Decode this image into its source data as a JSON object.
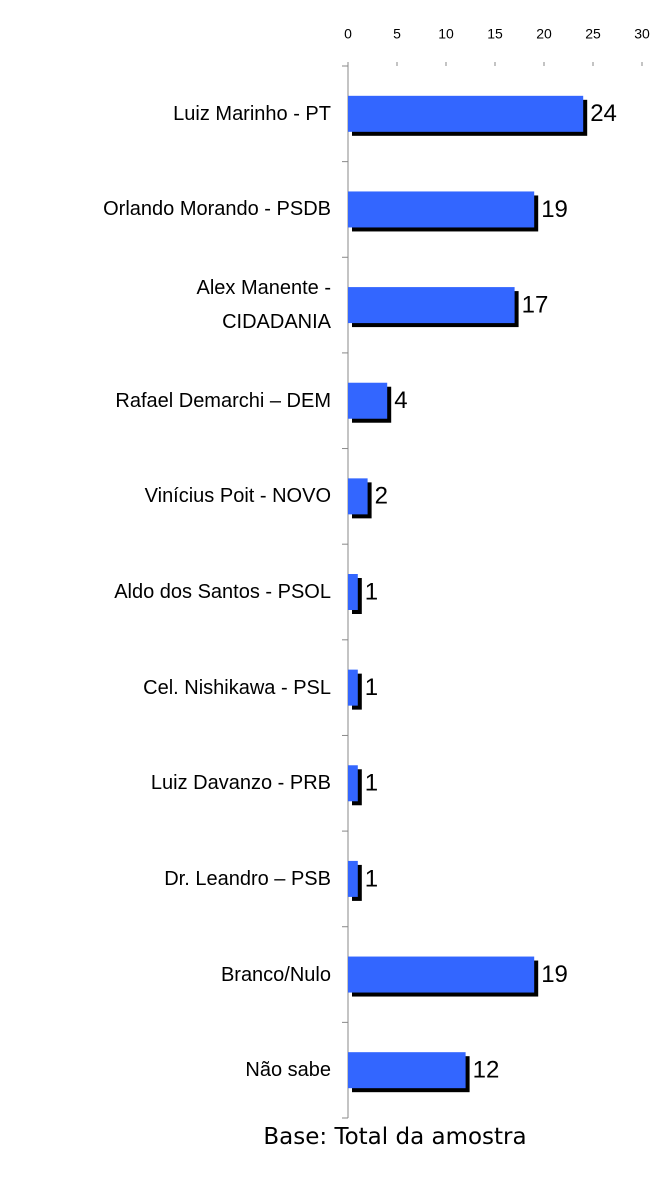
{
  "chart_data": {
    "type": "bar",
    "orientation": "horizontal",
    "categories": [
      "Luiz Marinho - PT",
      "Orlando Morando - PSDB",
      "Alex Manente -\nCIDADANIA",
      "Rafael Demarchi – DEM",
      "Vinícius Poit - NOVO",
      "Aldo dos Santos - PSOL",
      "Cel. Nishikawa - PSL",
      "Luiz Davanzo - PRB",
      "Dr. Leandro – PSB",
      "Branco/Nulo",
      "Não sabe"
    ],
    "values": [
      24,
      19,
      17,
      4,
      2,
      1,
      1,
      1,
      1,
      19,
      12
    ],
    "color": "#3366ff",
    "shadow_color": "#000000",
    "xlim": [
      0,
      30
    ],
    "xticks": [
      0,
      5,
      10,
      15,
      20,
      25,
      30
    ],
    "footnote": "Base: Total da amostra"
  }
}
